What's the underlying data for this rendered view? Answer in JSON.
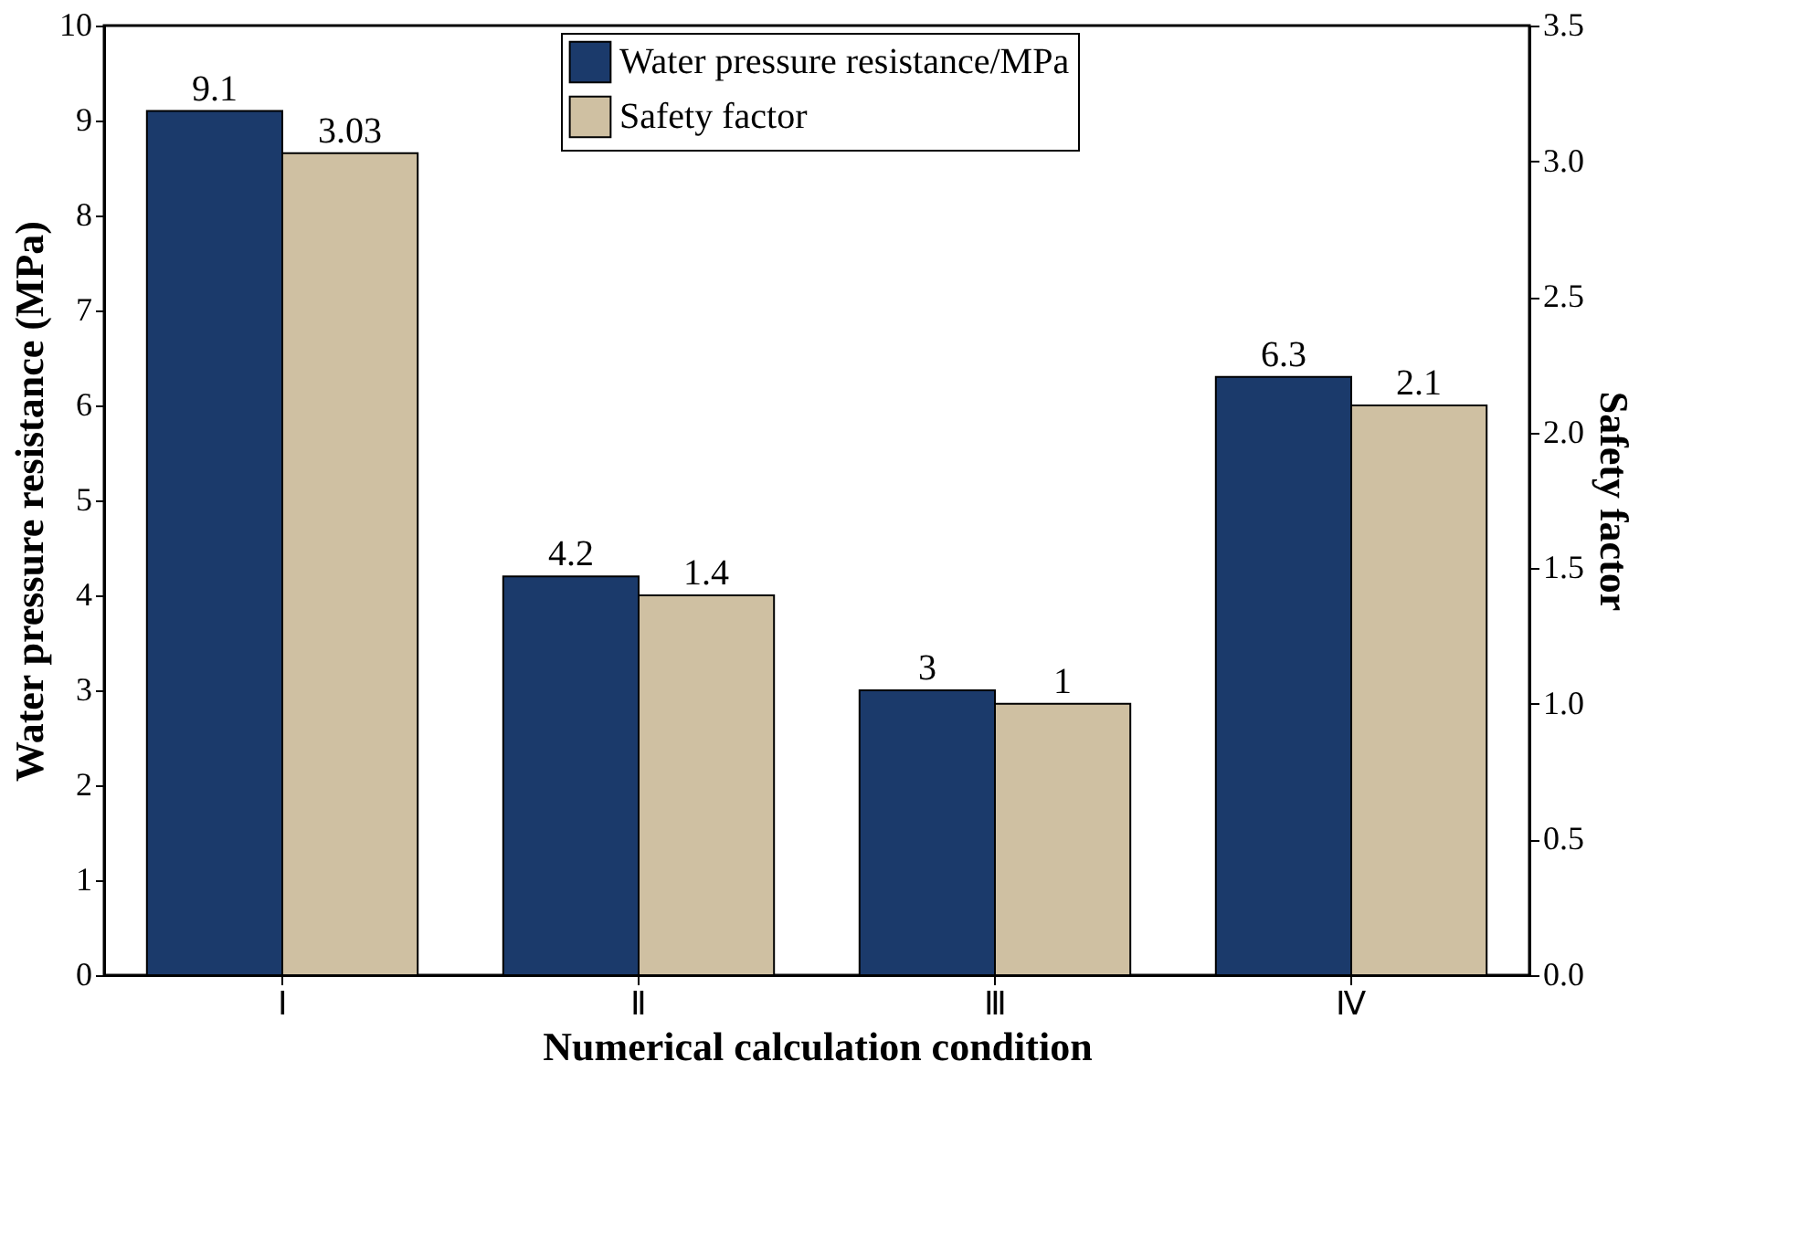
{
  "chart_data": {
    "type": "bar",
    "xlabel": "Numerical calculation condition",
    "ylabel": "Water pressure resistance (MPa)",
    "y2label": "Safety factor",
    "categories": [
      "Ⅰ",
      "Ⅱ",
      "Ⅲ",
      "Ⅳ"
    ],
    "series": [
      {
        "name": "Water pressure resistance/MPa",
        "color": "#1b3a6b",
        "values": [
          9.1,
          4.2,
          3,
          6.3
        ]
      },
      {
        "name": "Safety factor",
        "color": "#cfc0a2",
        "values": [
          3.03,
          1.4,
          1,
          2.1
        ],
        "axis": "y2"
      }
    ],
    "ylim": [
      0,
      10
    ],
    "yticks": [
      0,
      1,
      2,
      3,
      4,
      5,
      6,
      7,
      8,
      9,
      10
    ],
    "y2lim": [
      0,
      3.5
    ],
    "y2ticks": [
      {
        "value": 0,
        "label": "0.0"
      },
      0.5,
      {
        "value": 1,
        "label": "1.0"
      },
      1.5,
      {
        "value": 2,
        "label": "2.0"
      },
      2.5,
      {
        "value": 3,
        "label": "3.0"
      },
      3.5
    ],
    "data_labels": true,
    "legend": "top",
    "grid": false
  }
}
